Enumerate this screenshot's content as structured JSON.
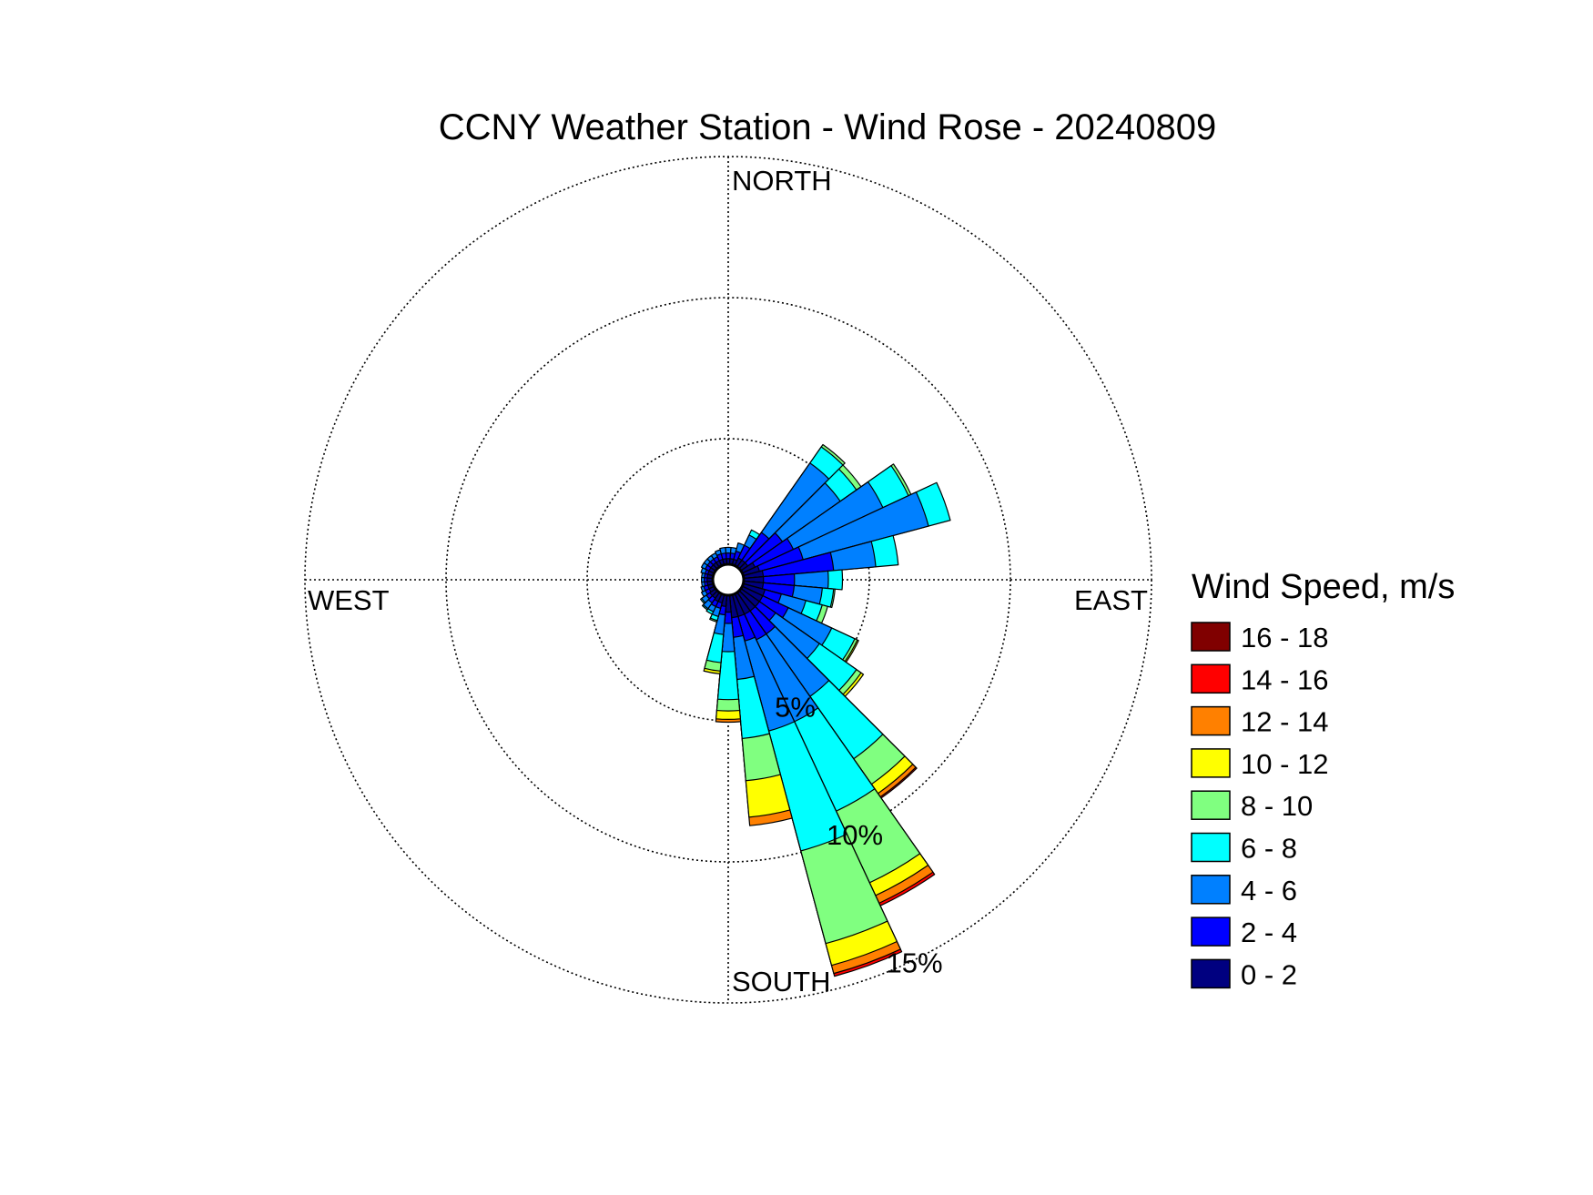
{
  "chart_data": {
    "type": "wind-rose",
    "title": "CCNY Weather Station - Wind Rose - 20240809",
    "direction_labels": {
      "north": "NORTH",
      "south": "SOUTH",
      "east": "EAST",
      "west": "WEST"
    },
    "radial_axis": {
      "ticks": [
        5,
        10,
        15
      ],
      "tick_labels": [
        "5%",
        "10%",
        "15%"
      ],
      "max": 15,
      "label_angle_deg": 155
    },
    "legend": {
      "title": "Wind Speed, m/s",
      "position": "right",
      "bins": [
        {
          "label": "16 - 18",
          "color": "#800000"
        },
        {
          "label": "14 - 16",
          "color": "#ff0000"
        },
        {
          "label": "12 - 14",
          "color": "#ff8000"
        },
        {
          "label": "10 - 12",
          "color": "#ffff00"
        },
        {
          "label": "8 - 10",
          "color": "#80ff80"
        },
        {
          "label": "6 - 8",
          "color": "#00ffff"
        },
        {
          "label": "4 - 6",
          "color": "#0080ff"
        },
        {
          "label": "2 - 4",
          "color": "#0000ff"
        },
        {
          "label": "0 - 2",
          "color": "#000080"
        }
      ]
    },
    "speed_bins_low_to_high": [
      "0 - 2",
      "2 - 4",
      "4 - 6",
      "6 - 8",
      "8 - 10",
      "10 - 12",
      "12 - 14",
      "14 - 16",
      "16 - 18"
    ],
    "sector_width_deg": 10,
    "sectors": [
      {
        "direction_deg": 0,
        "cumulative_percent": [
          0.2,
          0.4,
          0.6
        ]
      },
      {
        "direction_deg": 10,
        "cumulative_percent": [
          0.2,
          0.4,
          0.6
        ]
      },
      {
        "direction_deg": 20,
        "cumulative_percent": [
          0.2,
          0.5,
          0.8
        ]
      },
      {
        "direction_deg": 30,
        "cumulative_percent": [
          0.3,
          0.8,
          1.2,
          1.4
        ]
      },
      {
        "direction_deg": 40,
        "cumulative_percent": [
          0.3,
          1.5,
          4.5,
          5.2,
          5.3
        ]
      },
      {
        "direction_deg": 50,
        "cumulative_percent": [
          0.3,
          1.8,
          4.3,
          5.0,
          5.2
        ]
      },
      {
        "direction_deg": 60,
        "cumulative_percent": [
          0.5,
          2.0,
          5.5,
          6.5,
          6.6
        ]
      },
      {
        "direction_deg": 70,
        "cumulative_percent": [
          0.6,
          2.2,
          6.8,
          7.6
        ]
      },
      {
        "direction_deg": 80,
        "cumulative_percent": [
          0.7,
          3.2,
          4.7,
          5.5
        ]
      },
      {
        "direction_deg": 90,
        "cumulative_percent": [
          0.7,
          1.8,
          3.0,
          3.5
        ]
      },
      {
        "direction_deg": 100,
        "cumulative_percent": [
          0.7,
          1.8,
          2.8,
          3.2,
          3.25
        ]
      },
      {
        "direction_deg": 110,
        "cumulative_percent": [
          0.8,
          1.4,
          2.3,
          2.9,
          3.1
        ]
      },
      {
        "direction_deg": 120,
        "cumulative_percent": [
          0.8,
          1.8,
          3.5,
          4.4,
          4.5,
          4.55
        ]
      },
      {
        "direction_deg": 130,
        "cumulative_percent": [
          0.8,
          1.5,
          3.4,
          5.0,
          5.2,
          5.3
        ]
      },
      {
        "direction_deg": 140,
        "cumulative_percent": [
          0.8,
          1.8,
          4.5,
          7.2,
          8.3,
          8.7,
          8.85,
          8.9
        ]
      },
      {
        "direction_deg": 150,
        "cumulative_percent": [
          0.8,
          1.8,
          5.0,
          8.5,
          11.3,
          11.8,
          12.1,
          12.2
        ]
      },
      {
        "direction_deg": 160,
        "cumulative_percent": [
          0.8,
          1.7,
          5.0,
          9.4,
          12.8,
          13.6,
          13.9,
          14.0
        ]
      },
      {
        "direction_deg": 170,
        "cumulative_percent": [
          0.8,
          1.5,
          3.0,
          5.1,
          6.6,
          7.9,
          8.2
        ]
      },
      {
        "direction_deg": 180,
        "cumulative_percent": [
          0.6,
          1.0,
          2.0,
          3.7,
          4.1,
          4.4,
          4.5
        ]
      },
      {
        "direction_deg": 190,
        "cumulative_percent": [
          0.4,
          0.7,
          1.4,
          2.4,
          2.7,
          2.8
        ]
      },
      {
        "direction_deg": 200,
        "cumulative_percent": [
          0.3,
          0.5,
          0.8,
          0.95,
          1.0
        ]
      },
      {
        "direction_deg": 210,
        "cumulative_percent": [
          0.3,
          0.5,
          0.7,
          0.8
        ]
      },
      {
        "direction_deg": 220,
        "cumulative_percent": [
          0.25,
          0.45,
          0.7,
          0.75
        ]
      },
      {
        "direction_deg": 230,
        "cumulative_percent": [
          0.25,
          0.4,
          0.6,
          0.65
        ]
      },
      {
        "direction_deg": 240,
        "cumulative_percent": [
          0.2,
          0.35,
          0.5
        ]
      },
      {
        "direction_deg": 250,
        "cumulative_percent": [
          0.2,
          0.35,
          0.45
        ]
      },
      {
        "direction_deg": 260,
        "cumulative_percent": [
          0.2,
          0.3,
          0.4
        ]
      },
      {
        "direction_deg": 270,
        "cumulative_percent": [
          0.2,
          0.3,
          0.4
        ]
      },
      {
        "direction_deg": 280,
        "cumulative_percent": [
          0.2,
          0.3,
          0.4
        ]
      },
      {
        "direction_deg": 290,
        "cumulative_percent": [
          0.2,
          0.3,
          0.45
        ]
      },
      {
        "direction_deg": 300,
        "cumulative_percent": [
          0.2,
          0.35,
          0.5
        ]
      },
      {
        "direction_deg": 310,
        "cumulative_percent": [
          0.2,
          0.35,
          0.5
        ]
      },
      {
        "direction_deg": 320,
        "cumulative_percent": [
          0.2,
          0.35,
          0.5
        ]
      },
      {
        "direction_deg": 330,
        "cumulative_percent": [
          0.2,
          0.35,
          0.5
        ]
      },
      {
        "direction_deg": 340,
        "cumulative_percent": [
          0.2,
          0.4,
          0.55
        ]
      },
      {
        "direction_deg": 350,
        "cumulative_percent": [
          0.2,
          0.4,
          0.6
        ]
      }
    ],
    "grid": true
  }
}
